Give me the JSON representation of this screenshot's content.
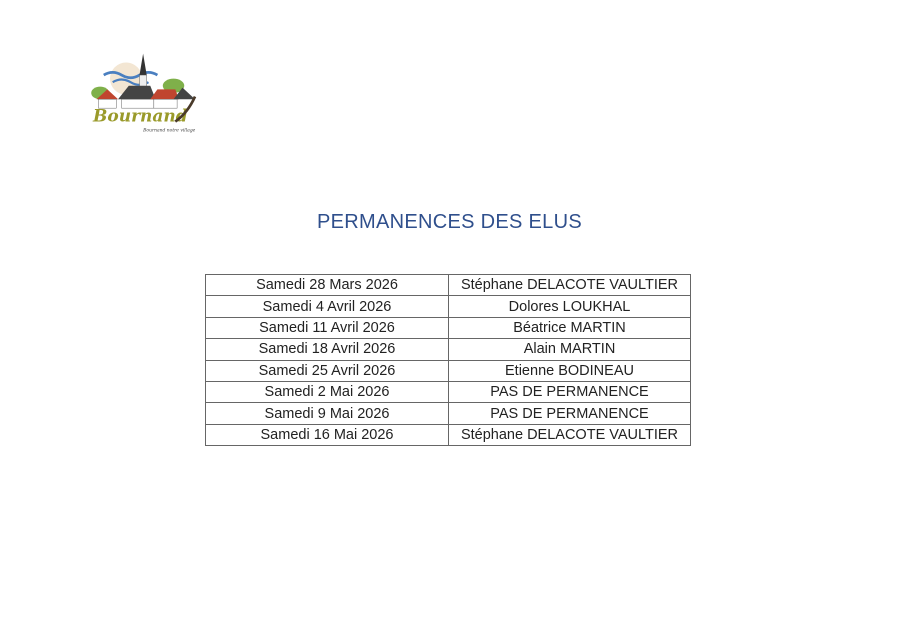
{
  "logo": {
    "name": "Bournand",
    "tagline": "Bournand notre village"
  },
  "title": "PERMANENCES DES ELUS",
  "schedule": [
    {
      "date": "Samedi 28 Mars 2026",
      "elu": "Stéphane DELACOTE VAULTIER"
    },
    {
      "date": "Samedi 4 Avril 2026",
      "elu": "Dolores LOUKHAL"
    },
    {
      "date": "Samedi 11 Avril 2026",
      "elu": "Béatrice MARTIN"
    },
    {
      "date": "Samedi 18 Avril 2026",
      "elu": "Alain MARTIN"
    },
    {
      "date": "Samedi 25 Avril 2026",
      "elu": "Etienne BODINEAU"
    },
    {
      "date": "Samedi 2 Mai 2026",
      "elu": "PAS DE PERMANENCE"
    },
    {
      "date": "Samedi 9 Mai 2026",
      "elu": "PAS DE PERMANENCE"
    },
    {
      "date": "Samedi 16 Mai 2026",
      "elu": "Stéphane DELACOTE VAULTIER"
    }
  ]
}
